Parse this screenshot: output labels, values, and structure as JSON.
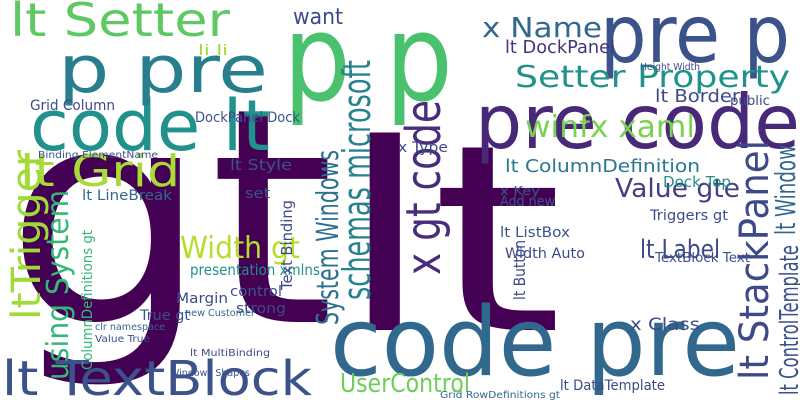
{
  "words": [
    {
      "text": "gt",
      "color": "#440154"
    },
    {
      "text": "lt",
      "color": "#440154"
    },
    {
      "text": "p p",
      "color": "#4ac16d"
    },
    {
      "text": "pre p",
      "color": "#3b528b"
    },
    {
      "text": "code pre",
      "color": "#31688e"
    },
    {
      "text": "pre code",
      "color": "#482878"
    },
    {
      "text": "code lt",
      "color": "#21918c"
    },
    {
      "text": "p pre",
      "color": "#277f8e"
    },
    {
      "text": "lt Setter",
      "color": "#5ec962"
    },
    {
      "text": "lt TextBlock",
      "color": "#3b528b"
    },
    {
      "text": "lt Grid",
      "color": "#a8db34"
    },
    {
      "text": "x Name",
      "color": "#31688e"
    },
    {
      "text": "Setter Property",
      "color": "#21918c"
    },
    {
      "text": "winfx xaml",
      "color": "#7ad151"
    },
    {
      "text": "schemas microsoft",
      "color": "#26828e"
    },
    {
      "text": "x gt code",
      "color": "#472d7b"
    },
    {
      "text": "System Windows",
      "color": "#2c728e"
    },
    {
      "text": "using System",
      "color": "#35b779"
    },
    {
      "text": "ltTrigger",
      "color": "#a0da39"
    },
    {
      "text": "lt StackPanel",
      "color": "#3e4989"
    },
    {
      "text": "lt Window",
      "color": "#31688e"
    },
    {
      "text": "Width gt",
      "color": "#b5de2b"
    },
    {
      "text": "UserControl",
      "color": "#6ece58"
    },
    {
      "text": "Value gte",
      "color": "#433e85"
    },
    {
      "text": "lt Label",
      "color": "#3e4989"
    },
    {
      "text": "lt ControlTemplate",
      "color": "#3b528b"
    },
    {
      "text": "lt DockPanel",
      "color": "#46337e"
    },
    {
      "text": "want",
      "color": "#3e4989"
    },
    {
      "text": "DockPanel Dock",
      "color": "#3b528b"
    },
    {
      "text": "lt Border",
      "color": "#3e4989"
    },
    {
      "text": "Grid Column",
      "color": "#3e4989"
    },
    {
      "text": "lt ColumnDefinition",
      "color": "#2a788e"
    },
    {
      "text": "lt LineBreak",
      "color": "#31688e"
    },
    {
      "text": "lt Style",
      "color": "#3b528b"
    },
    {
      "text": "Dock Top",
      "color": "#21918c"
    },
    {
      "text": "presentation xmlns",
      "color": "#21918c"
    },
    {
      "text": "lt DataTemplate",
      "color": "#3e4989"
    },
    {
      "text": "TextBlock Text",
      "color": "#3b528b"
    },
    {
      "text": "lt ListBox",
      "color": "#3b528b"
    },
    {
      "text": "x Class",
      "color": "#3e4989"
    },
    {
      "text": "Triggers gt",
      "color": "#3e4989"
    },
    {
      "text": "control",
      "color": "#3b528b"
    },
    {
      "text": "strong",
      "color": "#3e4989"
    },
    {
      "text": "Margin",
      "color": "#3e4989"
    },
    {
      "text": "True gt",
      "color": "#3b528b"
    },
    {
      "text": "Add new",
      "color": "#3b528b"
    },
    {
      "text": "Width Auto",
      "color": "#3e4989"
    },
    {
      "text": "x Key",
      "color": "#3b528b"
    },
    {
      "text": "set",
      "color": "#3b528b"
    },
    {
      "text": "public",
      "color": "#3e4989"
    },
    {
      "text": "li li",
      "color": "#a0da39"
    },
    {
      "text": "Binding ElementName",
      "color": "#3b528b"
    },
    {
      "text": "Text Binding",
      "color": "#3e4989"
    },
    {
      "text": "x Type",
      "color": "#3e4989"
    },
    {
      "text": "lt Button",
      "color": "#3e4989"
    },
    {
      "text": "new Customer",
      "color": "#31688e"
    },
    {
      "text": "Windows Shapes",
      "color": "#3b528b"
    },
    {
      "text": "lt MultiBinding",
      "color": "#3e4989"
    },
    {
      "text": "clr namespace",
      "color": "#31688e"
    },
    {
      "text": "Value True",
      "color": "#3b528b"
    },
    {
      "text": "ColumnDefinitions gt",
      "color": "#35b779"
    },
    {
      "text": "Grid RowDefinitions gt",
      "color": "#31688e"
    },
    {
      "text": "Height Width",
      "color": "#3e4989"
    }
  ]
}
